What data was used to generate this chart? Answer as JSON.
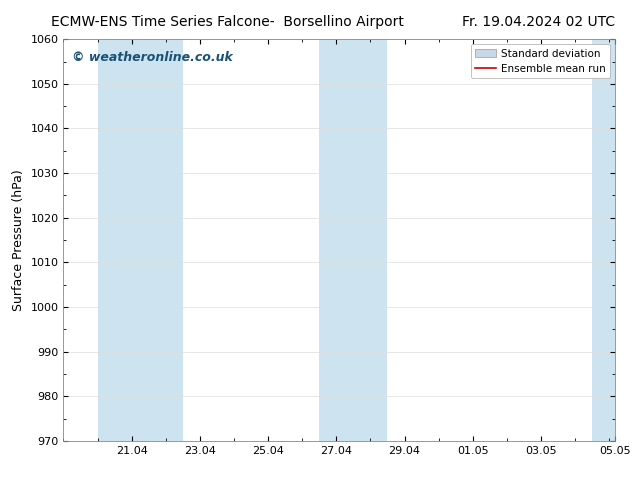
{
  "title_left": "ECMW-ENS Time Series Falcone-  Borsellino Airport",
  "title_right": "Fr. 19.04.2024 02 UTC",
  "ylabel": "Surface Pressure (hPa)",
  "ylim": [
    970,
    1060
  ],
  "yticks": [
    970,
    980,
    990,
    1000,
    1010,
    1020,
    1030,
    1040,
    1050,
    1060
  ],
  "xlim": [
    0,
    16.17
  ],
  "xtick_labels": [
    "21.04",
    "23.04",
    "25.04",
    "27.04",
    "29.04",
    "01.05",
    "03.05",
    "05.05"
  ],
  "xtick_positions": [
    2.0,
    4.0,
    6.0,
    8.0,
    10.0,
    12.0,
    14.0,
    16.17
  ],
  "shaded_bands": [
    {
      "x_start": 1.0,
      "x_end": 2.0
    },
    {
      "x_start": 2.0,
      "x_end": 3.5
    },
    {
      "x_start": 7.5,
      "x_end": 8.5
    },
    {
      "x_start": 8.5,
      "x_end": 9.5
    },
    {
      "x_start": 15.5,
      "x_end": 16.17
    }
  ],
  "shade_color": "#cde4f0",
  "background_color": "#ffffff",
  "watermark_text": "© weatheronline.co.uk",
  "watermark_color": "#1a5276",
  "legend_std_color": "#c8d8e8",
  "legend_std_edge": "#999999",
  "legend_mean_color": "#cc0000",
  "title_fontsize": 10,
  "axis_label_fontsize": 9,
  "tick_fontsize": 8,
  "watermark_fontsize": 9,
  "grid_color": "#dddddd",
  "spine_color": "#888888"
}
